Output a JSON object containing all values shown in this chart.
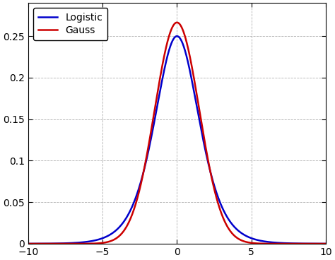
{
  "title": "",
  "xlim": [
    -10,
    10
  ],
  "ylim": [
    0,
    0.29
  ],
  "xticks": [
    -10,
    -5,
    0,
    5,
    10
  ],
  "yticks": [
    0,
    0.05,
    0.1,
    0.15,
    0.2,
    0.25
  ],
  "logistic_scale": 1.0,
  "logistic_color": "#0000cc",
  "gauss_color": "#cc0000",
  "logistic_label": "Logistic",
  "gauss_label": "Gauss",
  "line_width": 1.8,
  "background_color": "#ffffff",
  "grid_color": "#b0b0b0",
  "legend_fontsize": 10,
  "tick_fontsize": 10,
  "num_points": 2000
}
